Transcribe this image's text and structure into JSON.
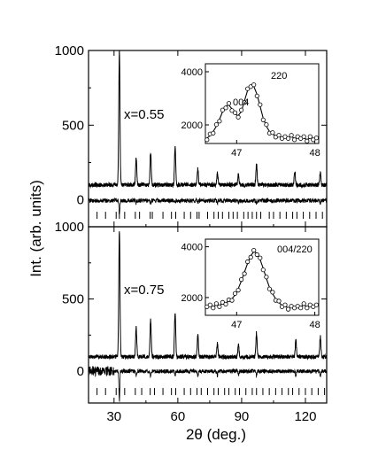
{
  "figure": {
    "ylabel": "Int. (arb. units)",
    "xlabel": "2θ (deg.)"
  },
  "chart_data": [
    {
      "type": "line",
      "panel": "top",
      "annotation": "x=0.55",
      "x_ticks": [
        "30",
        "60",
        "90",
        "120"
      ],
      "y_ticks": [
        "0",
        "500",
        "1000"
      ],
      "xlim": [
        18,
        130
      ],
      "ylim": [
        -180,
        1000
      ],
      "peaks": [
        {
          "x": 32.5,
          "y": 1000
        },
        {
          "x": 40.4,
          "y": 280
        },
        {
          "x": 47.2,
          "y": 320
        },
        {
          "x": 58.7,
          "y": 355
        },
        {
          "x": 69.4,
          "y": 210
        },
        {
          "x": 78.6,
          "y": 180
        },
        {
          "x": 88.5,
          "y": 170
        },
        {
          "x": 97.0,
          "y": 240
        },
        {
          "x": 115.0,
          "y": 190
        },
        {
          "x": 127.0,
          "y": 180
        }
      ],
      "background": 100,
      "difference_level": -5,
      "reflection_marks_x": [
        22,
        26,
        31,
        32.5,
        35,
        40,
        42,
        47,
        48,
        53,
        57,
        59,
        63,
        66,
        69,
        70,
        74,
        77,
        79,
        81,
        84,
        86,
        88,
        91,
        93,
        95,
        97,
        99,
        103,
        105,
        108,
        111,
        114,
        116,
        119,
        122,
        125,
        128
      ],
      "inset": {
        "x_ticks": [
          "47",
          "48"
        ],
        "y_ticks": [
          "2000",
          "4000"
        ],
        "xlim": [
          46.6,
          48.05
        ],
        "ylim": [
          1300,
          4300
        ],
        "labels": [
          "004",
          "220"
        ],
        "points_x": [
          46.62,
          46.66,
          46.7,
          46.74,
          46.78,
          46.82,
          46.86,
          46.9,
          46.94,
          46.98,
          47.02,
          47.06,
          47.1,
          47.14,
          47.18,
          47.22,
          47.26,
          47.3,
          47.34,
          47.38,
          47.42,
          47.46,
          47.5,
          47.54,
          47.58,
          47.62,
          47.66,
          47.7,
          47.74,
          47.78,
          47.82,
          47.86,
          47.9,
          47.94,
          47.98,
          48.02
        ],
        "points_y": [
          1500,
          1600,
          1750,
          1950,
          2200,
          2500,
          2700,
          2750,
          2600,
          2400,
          2350,
          2500,
          2900,
          3300,
          3500,
          3450,
          3150,
          2700,
          2250,
          1950,
          1750,
          1650,
          1600,
          1550,
          1550,
          1500,
          1550,
          1550,
          1500,
          1500,
          1550,
          1500,
          1450,
          1500,
          1500,
          1450
        ]
      }
    },
    {
      "type": "line",
      "panel": "bottom",
      "annotation": "x=0.75",
      "x_ticks": [
        "30",
        "60",
        "90",
        "120"
      ],
      "y_ticks": [
        "0",
        "500",
        "1000"
      ],
      "xlim": [
        18,
        130
      ],
      "ylim": [
        -220,
        1000
      ],
      "peaks": [
        {
          "x": 32.5,
          "y": 980
        },
        {
          "x": 40.4,
          "y": 300
        },
        {
          "x": 47.2,
          "y": 360
        },
        {
          "x": 58.7,
          "y": 410
        },
        {
          "x": 69.4,
          "y": 260
        },
        {
          "x": 78.6,
          "y": 195
        },
        {
          "x": 88.5,
          "y": 180
        },
        {
          "x": 97.0,
          "y": 265
        },
        {
          "x": 115.5,
          "y": 210
        },
        {
          "x": 127.0,
          "y": 240
        }
      ],
      "background": 100,
      "difference_level": 0,
      "reflection_marks_x": [
        22,
        26,
        31,
        32.5,
        35,
        40,
        43,
        47,
        49,
        53,
        57,
        59,
        63,
        66,
        69,
        71,
        74,
        77,
        79,
        82,
        84,
        87,
        89,
        92,
        95,
        97,
        100,
        103,
        106,
        109,
        112,
        114,
        117,
        120,
        123,
        126,
        129
      ],
      "inset": {
        "x_ticks": [
          "47",
          "48"
        ],
        "y_ticks": [
          "2000",
          "4000"
        ],
        "xlim": [
          46.6,
          48.05
        ],
        "ylim": [
          1300,
          4300
        ],
        "labels": [
          "004/220"
        ],
        "points_x": [
          46.62,
          46.66,
          46.7,
          46.74,
          46.78,
          46.82,
          46.86,
          46.9,
          46.94,
          46.98,
          47.02,
          47.06,
          47.1,
          47.14,
          47.18,
          47.22,
          47.26,
          47.3,
          47.34,
          47.38,
          47.42,
          47.46,
          47.5,
          47.54,
          47.58,
          47.62,
          47.66,
          47.7,
          47.74,
          47.78,
          47.82,
          47.86,
          47.9,
          47.94,
          47.98,
          48.02
        ],
        "points_y": [
          1700,
          1650,
          1650,
          1700,
          1700,
          1750,
          1800,
          1850,
          1950,
          2100,
          2350,
          2650,
          3000,
          3350,
          3650,
          3800,
          3750,
          3500,
          3150,
          2750,
          2400,
          2150,
          1950,
          1800,
          1700,
          1650,
          1600,
          1600,
          1650,
          1600,
          1650,
          1700,
          1650,
          1650,
          1700,
          1650
        ]
      }
    }
  ]
}
